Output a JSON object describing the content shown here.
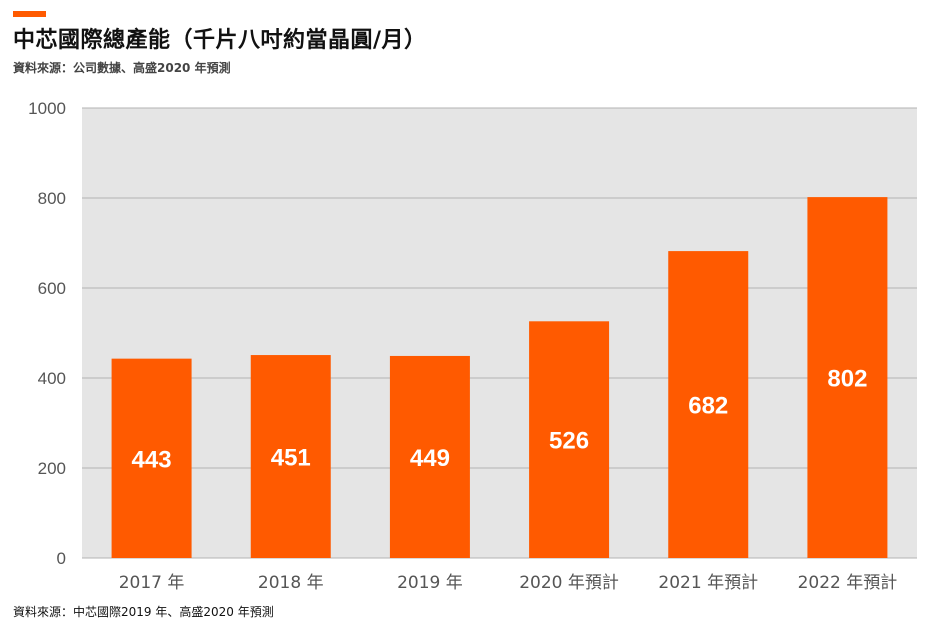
{
  "header": {
    "title": "中芯國際總產能（千片八吋約當晶圓/月）",
    "subtitle": "資料來源：公司數據、高盛2020 年預測",
    "accent_color": "#ff5a00"
  },
  "footer": {
    "source_note": "資料來源：中芯國際2019 年、高盛2020 年預測"
  },
  "chart_data": {
    "type": "bar",
    "categories": [
      "2017 年",
      "2018 年",
      "2019 年",
      "2020 年預計",
      "2021 年預計",
      "2022 年預計"
    ],
    "values": [
      443,
      451,
      449,
      526,
      682,
      802
    ],
    "data_labels": [
      "443",
      "451",
      "449",
      "526",
      "682",
      "802"
    ],
    "title": "中芯國際總產能（千片八吋約當晶圓/月）",
    "xlabel": "",
    "ylabel": "",
    "ylim": [
      0,
      1000
    ],
    "yticks": [
      0,
      200,
      400,
      600,
      800,
      1000
    ],
    "ytick_labels": [
      "0",
      "200",
      "400",
      "600",
      "800",
      "1000"
    ],
    "grid": true,
    "legend": "none",
    "colors": {
      "bar": "#ff5a00",
      "plot_background": "#e5e5e5",
      "gridline": "#b3b3b3",
      "data_label": "#ffffff",
      "tick_label": "#555555"
    }
  }
}
